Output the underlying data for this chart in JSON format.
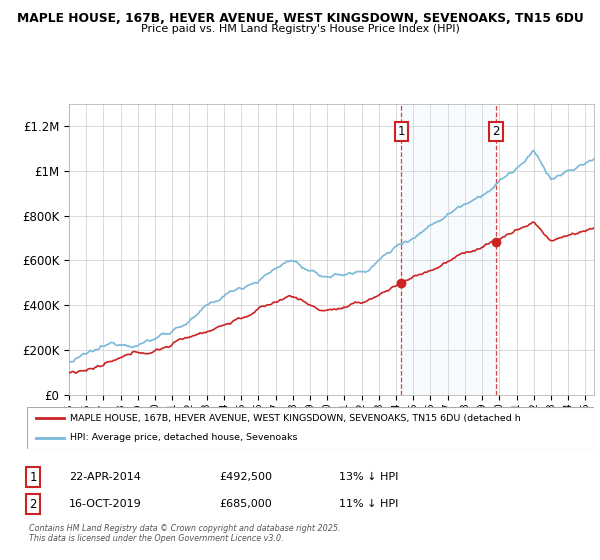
{
  "title1": "MAPLE HOUSE, 167B, HEVER AVENUE, WEST KINGSDOWN, SEVENOAKS, TN15 6DU",
  "title2": "Price paid vs. HM Land Registry's House Price Index (HPI)",
  "ylim": [
    0,
    1300000
  ],
  "yticks": [
    0,
    200000,
    400000,
    600000,
    800000,
    1000000,
    1200000
  ],
  "ytick_labels": [
    "£0",
    "£200K",
    "£400K",
    "£600K",
    "£800K",
    "£1M",
    "£1.2M"
  ],
  "hpi_color": "#7ab8d9",
  "price_color": "#cc2222",
  "span_color": "#d6eaf8",
  "marker1_year": 2014.3,
  "marker1_price": 492500,
  "marker1_label": "22-APR-2014",
  "marker1_pct": "13% ↓ HPI",
  "marker2_year": 2019.8,
  "marker2_price": 685000,
  "marker2_label": "16-OCT-2019",
  "marker2_pct": "11% ↓ HPI",
  "legend_label1": "MAPLE HOUSE, 167B, HEVER AVENUE, WEST KINGSDOWN, SEVENOAKS, TN15 6DU (detached h",
  "legend_label2": "HPI: Average price, detached house, Sevenoaks",
  "footer1": "Contains HM Land Registry data © Crown copyright and database right 2025.",
  "footer2": "This data is licensed under the Open Government Licence v3.0.",
  "background_color": "#ffffff",
  "grid_color": "#cccccc"
}
